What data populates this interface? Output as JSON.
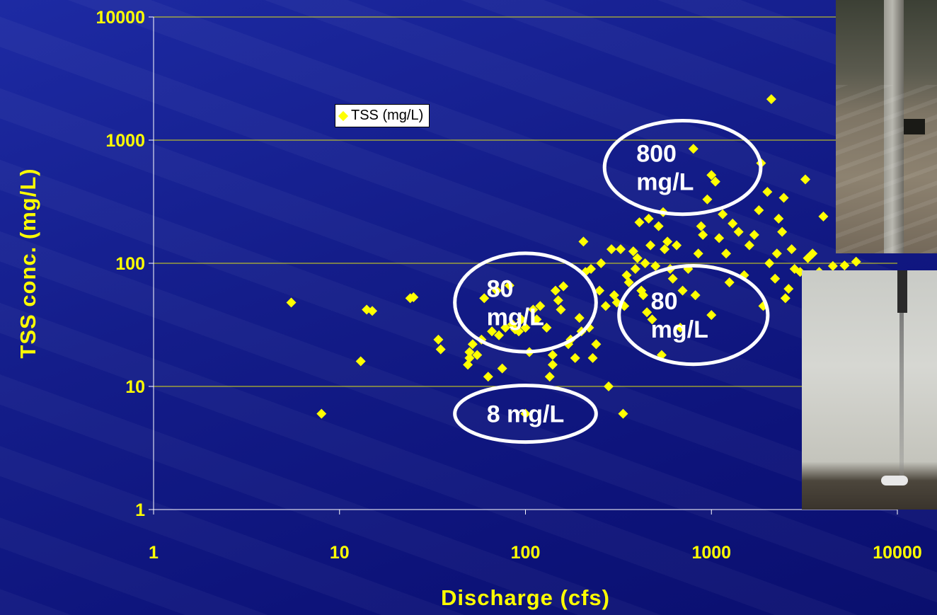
{
  "chart_data": {
    "type": "scatter",
    "xlabel": "Discharge (cfs)",
    "ylabel": "TSS conc. (mg/L)",
    "x_scale": "log",
    "y_scale": "log",
    "xlim": [
      1,
      10000
    ],
    "ylim": [
      1,
      10000
    ],
    "x_ticks": [
      "1",
      "10",
      "100",
      "1000",
      "10000"
    ],
    "y_ticks": [
      "1",
      "10",
      "100",
      "1000",
      "10000"
    ],
    "grid": "horizontal",
    "legend_position": "top-left",
    "colors": {
      "marker": "#ffff00",
      "axis_text": "#ffff00",
      "annotation": "#ffffff"
    },
    "series": [
      {
        "name": "TSS (mg/L)",
        "points": [
          [
            5.5,
            48
          ],
          [
            8,
            6
          ],
          [
            13,
            16
          ],
          [
            14,
            42
          ],
          [
            15,
            41
          ],
          [
            24,
            52
          ],
          [
            25,
            53
          ],
          [
            34,
            24
          ],
          [
            35,
            20
          ],
          [
            49,
            15
          ],
          [
            50,
            17
          ],
          [
            50,
            19
          ],
          [
            52,
            22
          ],
          [
            55,
            18
          ],
          [
            58,
            24
          ],
          [
            60,
            52
          ],
          [
            63,
            12
          ],
          [
            66,
            28
          ],
          [
            70,
            60
          ],
          [
            72,
            26
          ],
          [
            75,
            14
          ],
          [
            78,
            30
          ],
          [
            82,
            66
          ],
          [
            85,
            32
          ],
          [
            88,
            29
          ],
          [
            92,
            28
          ],
          [
            95,
            35
          ],
          [
            100,
            30
          ],
          [
            100,
            6
          ],
          [
            105,
            19
          ],
          [
            110,
            42
          ],
          [
            115,
            35
          ],
          [
            120,
            45
          ],
          [
            130,
            30
          ],
          [
            135,
            12
          ],
          [
            140,
            18
          ],
          [
            140,
            15
          ],
          [
            145,
            60
          ],
          [
            150,
            50
          ],
          [
            155,
            42
          ],
          [
            160,
            65
          ],
          [
            170,
            22
          ],
          [
            175,
            24
          ],
          [
            185,
            17
          ],
          [
            195,
            36
          ],
          [
            200,
            28
          ],
          [
            205,
            150
          ],
          [
            210,
            85
          ],
          [
            220,
            30
          ],
          [
            225,
            90
          ],
          [
            230,
            17
          ],
          [
            240,
            22
          ],
          [
            250,
            60
          ],
          [
            255,
            100
          ],
          [
            270,
            45
          ],
          [
            280,
            10
          ],
          [
            290,
            130
          ],
          [
            300,
            55
          ],
          [
            310,
            48
          ],
          [
            325,
            130
          ],
          [
            335,
            6
          ],
          [
            340,
            45
          ],
          [
            350,
            80
          ],
          [
            360,
            70
          ],
          [
            380,
            125
          ],
          [
            390,
            90
          ],
          [
            400,
            110
          ],
          [
            410,
            215
          ],
          [
            420,
            60
          ],
          [
            430,
            55
          ],
          [
            440,
            100
          ],
          [
            450,
            40
          ],
          [
            460,
            230
          ],
          [
            470,
            140
          ],
          [
            480,
            35
          ],
          [
            500,
            95
          ],
          [
            520,
            200
          ],
          [
            540,
            18
          ],
          [
            550,
            260
          ],
          [
            560,
            130
          ],
          [
            580,
            150
          ],
          [
            600,
            90
          ],
          [
            620,
            75
          ],
          [
            650,
            140
          ],
          [
            680,
            30
          ],
          [
            700,
            60
          ],
          [
            750,
            90
          ],
          [
            800,
            850
          ],
          [
            820,
            55
          ],
          [
            850,
            120
          ],
          [
            880,
            200
          ],
          [
            900,
            170
          ],
          [
            950,
            330
          ],
          [
            1000,
            520
          ],
          [
            1000,
            38
          ],
          [
            1050,
            460
          ],
          [
            1100,
            160
          ],
          [
            1150,
            250
          ],
          [
            1200,
            120
          ],
          [
            1250,
            70
          ],
          [
            1300,
            210
          ],
          [
            1400,
            180
          ],
          [
            1500,
            80
          ],
          [
            1600,
            140
          ],
          [
            1700,
            170
          ],
          [
            1800,
            270
          ],
          [
            1850,
            650
          ],
          [
            1900,
            45
          ],
          [
            2000,
            380
          ],
          [
            2050,
            100
          ],
          [
            2100,
            2150
          ],
          [
            2200,
            75
          ],
          [
            2250,
            120
          ],
          [
            2300,
            230
          ],
          [
            2400,
            180
          ],
          [
            2450,
            340
          ],
          [
            2500,
            52
          ],
          [
            2600,
            62
          ],
          [
            2700,
            130
          ],
          [
            2800,
            90
          ],
          [
            3000,
            85
          ],
          [
            3200,
            480
          ],
          [
            3300,
            110
          ],
          [
            3500,
            120
          ],
          [
            3800,
            85
          ],
          [
            4000,
            240
          ],
          [
            4500,
            95
          ],
          [
            5200,
            96
          ],
          [
            6000,
            103
          ]
        ]
      }
    ],
    "annotations": [
      {
        "label_lines": [
          "800",
          "mg/L"
        ],
        "cx": 700,
        "cy": 600,
        "rx_decades": 0.42,
        "ry_decades": 0.38
      },
      {
        "label_lines": [
          "80",
          "mg/L"
        ],
        "cx": 100,
        "cy": 48,
        "rx_decades": 0.38,
        "ry_decades": 0.4
      },
      {
        "label_lines": [
          "80",
          "mg/L"
        ],
        "cx": 800,
        "cy": 38,
        "rx_decades": 0.4,
        "ry_decades": 0.4
      },
      {
        "label_lines": [
          "8 mg/L"
        ],
        "cx": 100,
        "cy": 6,
        "rx_decades": 0.38,
        "ry_decades": 0.23
      }
    ]
  },
  "legend": {
    "label": "TSS (mg/L)"
  }
}
